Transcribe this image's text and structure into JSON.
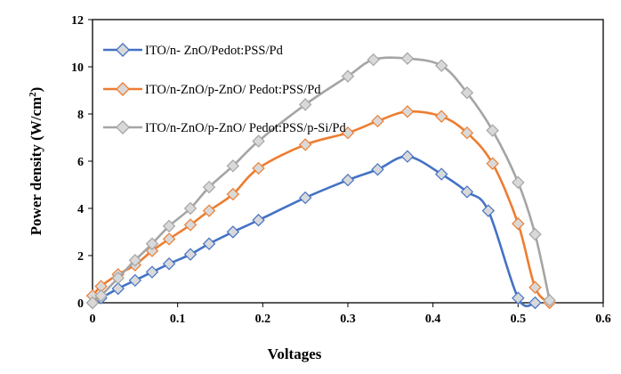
{
  "chart_data": {
    "type": "line",
    "xlabel": "Voltages",
    "ylabel_main": "Power density (W/cm",
    "ylabel_sup": "2",
    "ylabel_close": ")",
    "xlim": [
      0,
      0.6
    ],
    "ylim": [
      0,
      12
    ],
    "xticks": [
      0,
      0.1,
      0.2,
      0.3,
      0.4,
      0.5,
      0.6
    ],
    "xtick_labels": [
      "0",
      "0.1",
      "0.2",
      "0.3",
      "0.4",
      "0.5",
      "0.6"
    ],
    "yticks": [
      0,
      2,
      4,
      6,
      8,
      10,
      12
    ],
    "ytick_labels": [
      "0",
      "2",
      "4",
      "6",
      "8",
      "10",
      "12"
    ],
    "grid": false,
    "legend_position": "top-left",
    "series": [
      {
        "name": "ITO/n- ZnO/Pedot:PSS/Pd",
        "color": "#4472C4",
        "x": [
          0,
          0.01,
          0.03,
          0.05,
          0.07,
          0.09,
          0.115,
          0.137,
          0.165,
          0.195,
          0.25,
          0.3,
          0.335,
          0.37,
          0.41,
          0.44,
          0.465,
          0.5,
          0.52
        ],
        "y": [
          0,
          0.2,
          0.6,
          0.95,
          1.3,
          1.65,
          2.05,
          2.5,
          3.0,
          3.5,
          4.45,
          5.2,
          5.65,
          6.2,
          5.45,
          4.7,
          3.9,
          0.2,
          0
        ]
      },
      {
        "name": "ITO/n-ZnO/p-ZnO/ Pedot:PSS/Pd",
        "color": "#ED7D31",
        "x": [
          0,
          0.01,
          0.03,
          0.05,
          0.07,
          0.09,
          0.115,
          0.137,
          0.165,
          0.195,
          0.25,
          0.3,
          0.335,
          0.37,
          0.41,
          0.44,
          0.47,
          0.5,
          0.52,
          0.537
        ],
        "y": [
          0.3,
          0.7,
          1.2,
          1.6,
          2.2,
          2.7,
          3.3,
          3.9,
          4.6,
          5.7,
          6.7,
          7.2,
          7.7,
          8.1,
          7.9,
          7.2,
          5.9,
          3.35,
          0.65,
          0
        ]
      },
      {
        "name": "ITO/n-ZnO/p-ZnO/ Pedot:PSS/p-Si/Pd",
        "color": "#A5A5A5",
        "x": [
          0,
          0.01,
          0.03,
          0.05,
          0.07,
          0.09,
          0.115,
          0.137,
          0.165,
          0.195,
          0.25,
          0.3,
          0.33,
          0.37,
          0.41,
          0.44,
          0.47,
          0.5,
          0.52,
          0.537
        ],
        "y": [
          0,
          0.3,
          1.05,
          1.8,
          2.5,
          3.25,
          4.0,
          4.9,
          5.8,
          6.85,
          8.4,
          9.6,
          10.3,
          10.35,
          10.05,
          8.9,
          7.3,
          5.1,
          2.9,
          0.1
        ]
      }
    ]
  }
}
